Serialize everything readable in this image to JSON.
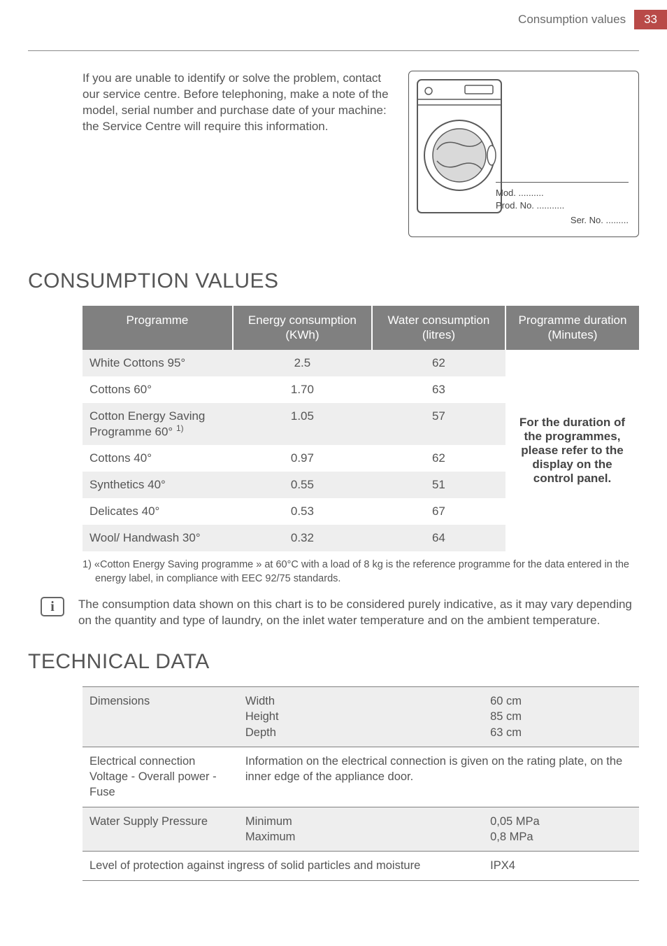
{
  "header": {
    "title": "Consumption values",
    "page": "33"
  },
  "intro": "If you are unable to identify or solve the problem, contact our service centre. Before telephoning, make a note of the model, serial number and purchase date of your machine: the Service Centre will require this information.",
  "plate": {
    "mod": "Mod. ..........",
    "prod": "Prod. No. ...........",
    "ser": "Ser. No. ........."
  },
  "section1": {
    "heading": "CONSUMPTION VALUES",
    "columns": [
      "Programme",
      "Energy consumption (KWh)",
      "Water consumption (litres)",
      "Programme duration (Minutes)"
    ],
    "rows": [
      {
        "programme": "White Cottons 95°",
        "energy": "2.5",
        "water": "62",
        "band": true
      },
      {
        "programme": "Cottons 60°",
        "energy": "1.70",
        "water": "63",
        "band": false
      },
      {
        "programme": "Cotton Energy Saving Programme 60° ",
        "sup": "1)",
        "energy": "1.05",
        "water": "57",
        "band": true
      },
      {
        "programme": "Cottons 40°",
        "energy": "0.97",
        "water": "62",
        "band": false
      },
      {
        "programme": "Synthetics 40°",
        "energy": "0.55",
        "water": "51",
        "band": true
      },
      {
        "programme": "Delicates 40°",
        "energy": "0.53",
        "water": "67",
        "band": false
      },
      {
        "programme": "Wool/ Handwash 30°",
        "energy": "0.32",
        "water": "64",
        "band": true
      }
    ],
    "duration_text": "For the duration of the programmes, please refer to the display on the control panel.",
    "footnote": "1) «Cotton Energy Saving programme » at 60°C with a load of 8 kg is the reference programme for the data entered in the energy label, in compliance with EEC 92/75 standards.",
    "note": "The consumption data shown on this chart is to be considered purely indicative, as it may vary depending on the quantity and type of laundry, on the inlet water temperature and on the ambient temperature."
  },
  "section2": {
    "heading": "TECHNICAL DATA",
    "rows": [
      {
        "band": true,
        "cells": [
          {
            "text": "Dimensions",
            "cls": "k"
          },
          {
            "text": "Width\nHeight\nDepth",
            "cls": "m"
          },
          {
            "text": "60 cm\n85 cm\n63 cm"
          }
        ]
      },
      {
        "band": false,
        "cells": [
          {
            "text": "Electrical connection\nVoltage - Overall power - Fuse",
            "cls": "k"
          },
          {
            "text": "Information on the electrical connection is given on the rating plate, on the inner edge of the appliance door.",
            "colspan": 2
          }
        ]
      },
      {
        "band": true,
        "cells": [
          {
            "text": "Water Supply Pressure",
            "cls": "k"
          },
          {
            "text": "Minimum\nMaximum",
            "cls": "m"
          },
          {
            "text": "0,05 MPa\n0,8 MPa"
          }
        ]
      },
      {
        "band": false,
        "cells": [
          {
            "text": "Level of protection against ingress of solid particles and moisture",
            "colspan": 2
          },
          {
            "text": "IPX4"
          }
        ]
      }
    ]
  },
  "colors": {
    "accent": "#b94a48",
    "header_bg": "#808080",
    "band_bg": "#eeeeee",
    "text": "#555555",
    "rule": "#8a8a8a"
  }
}
